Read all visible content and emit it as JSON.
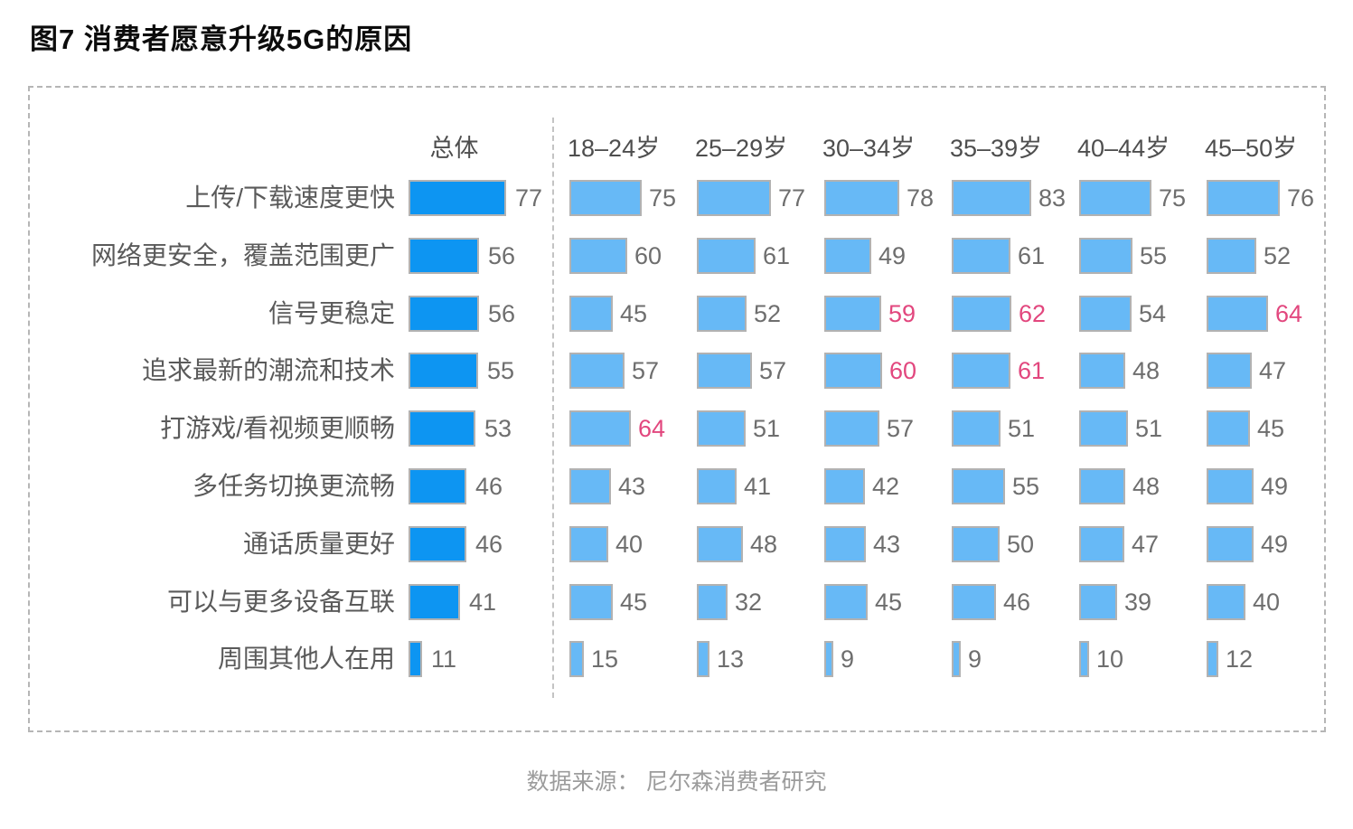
{
  "title": "图7 消费者愿意升级5G的原因",
  "footer": "数据来源： 尼尔森消费者研究",
  "colors": {
    "overall_bar": "#0d95f2",
    "age_bar": "#67b9f6",
    "bar_border": "#b2b2b2",
    "highlight_value": "#e2477e",
    "value_text": "#6e6e6e",
    "label_text": "#5a5a5a",
    "box_dash": "#b6b6b6"
  },
  "chart_data": {
    "type": "bar",
    "orientation": "horizontal",
    "title": "图7 消费者愿意升级5G的原因",
    "columns": [
      "总体",
      "18–24岁",
      "25–29岁",
      "30–34岁",
      "35–39岁",
      "40–44岁",
      "45–50岁"
    ],
    "categories": [
      "上传/下载速度更快",
      "网络更安全，覆盖范围更广",
      "信号更稳定",
      "追求最新的潮流和技术",
      "打游戏/看视频更顺畅",
      "多任务切换更流畅",
      "通话质量更好",
      "可以与更多设备互联",
      "周围其他人在用"
    ],
    "series": [
      {
        "name": "总体",
        "values": [
          77,
          56,
          56,
          55,
          53,
          46,
          46,
          41,
          11
        ]
      },
      {
        "name": "18–24岁",
        "values": [
          75,
          60,
          45,
          57,
          64,
          43,
          40,
          45,
          15
        ]
      },
      {
        "name": "25–29岁",
        "values": [
          77,
          61,
          52,
          57,
          51,
          41,
          48,
          32,
          13
        ]
      },
      {
        "name": "30–34岁",
        "values": [
          78,
          49,
          59,
          60,
          57,
          42,
          43,
          45,
          9
        ]
      },
      {
        "name": "35–39岁",
        "values": [
          83,
          61,
          62,
          61,
          51,
          55,
          50,
          46,
          9
        ]
      },
      {
        "name": "40–44岁",
        "values": [
          75,
          55,
          54,
          48,
          51,
          48,
          47,
          39,
          10
        ]
      },
      {
        "name": "45–50岁",
        "values": [
          76,
          52,
          64,
          47,
          45,
          49,
          49,
          40,
          12
        ]
      }
    ],
    "highlights": [
      {
        "row": 2,
        "col": 2
      },
      {
        "row": 2,
        "col": 3
      },
      {
        "row": 2,
        "col": 5
      },
      {
        "row": 3,
        "col": 2
      },
      {
        "row": 3,
        "col": 3
      },
      {
        "row": 4,
        "col": 0
      }
    ],
    "value_range": [
      0,
      100
    ],
    "grid": false,
    "legend_position": "none"
  }
}
